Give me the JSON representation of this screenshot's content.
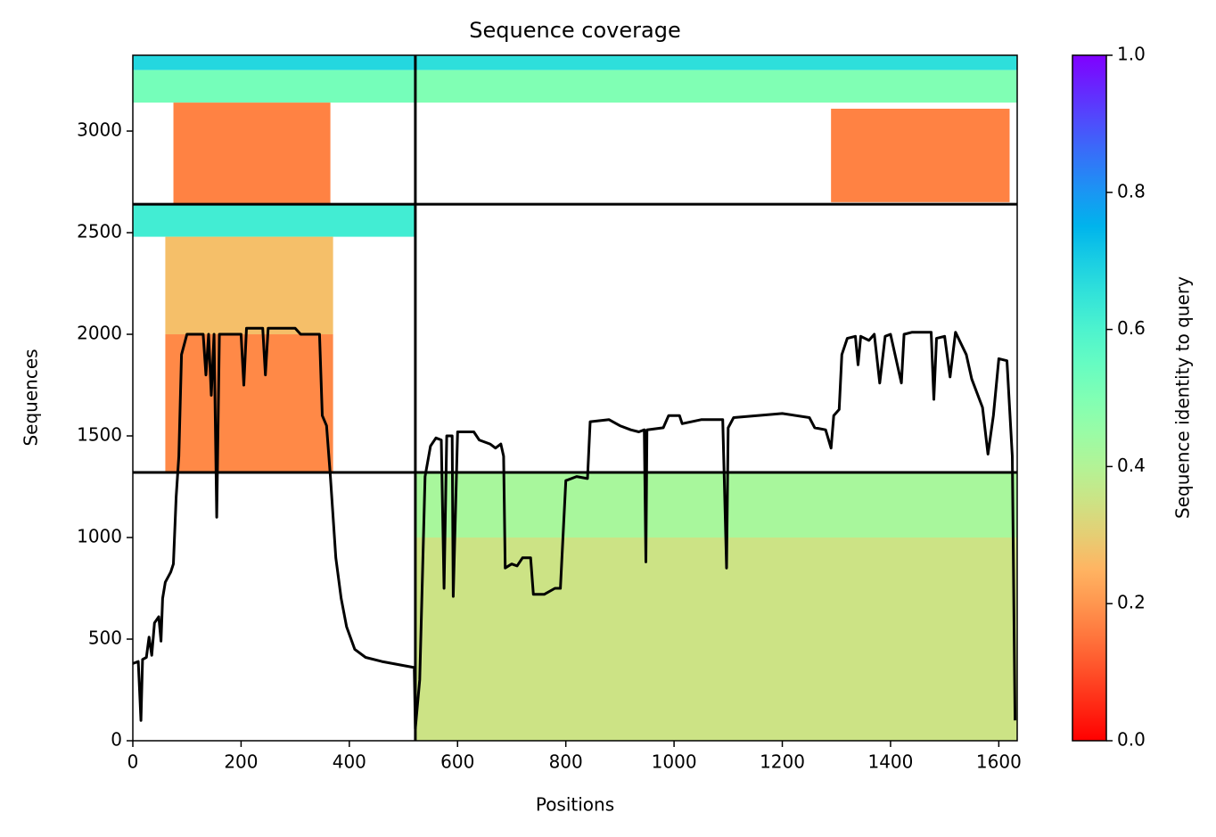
{
  "chart_data": {
    "type": "coverage",
    "title": "Sequence coverage",
    "xlabel": "Positions",
    "ylabel": "Sequences",
    "xlim": [
      0,
      1634
    ],
    "ylim": [
      0,
      3373
    ],
    "xticks": [
      0,
      200,
      400,
      600,
      800,
      1000,
      1200,
      1400,
      1600
    ],
    "yticks": [
      0,
      500,
      1000,
      1500,
      2000,
      2500,
      3000
    ],
    "colormap": "rainbow_r",
    "colorbar": {
      "label": "Sequence identity to query",
      "lim": [
        0,
        1
      ],
      "ticks": [
        {
          "value": 0,
          "label": "0.0"
        },
        0.2,
        0.4,
        0.6,
        0.8,
        {
          "value": 1,
          "label": "1.0"
        }
      ]
    },
    "blocks": [
      {
        "x": [
          0,
          522
        ],
        "y": [
          3300,
          3373
        ],
        "identity": 0.68
      },
      {
        "x": [
          0,
          522
        ],
        "y": [
          3140,
          3300
        ],
        "identity": 0.52
      },
      {
        "x": [
          75,
          365
        ],
        "y": [
          2640,
          3140
        ],
        "identity": 0.17
      },
      {
        "x": [
          522,
          1634
        ],
        "y": [
          3300,
          3373
        ],
        "identity": 0.66
      },
      {
        "x": [
          522,
          1634
        ],
        "y": [
          3140,
          3300
        ],
        "identity": 0.5
      },
      {
        "x": [
          1290,
          1620
        ],
        "y": [
          2650,
          3110
        ],
        "identity": 0.17
      },
      {
        "x": [
          0,
          522
        ],
        "y": [
          2480,
          2640
        ],
        "identity": 0.62
      },
      {
        "x": [
          60,
          370
        ],
        "y": [
          2000,
          2480
        ],
        "identity": 0.27
      },
      {
        "x": [
          60,
          370
        ],
        "y": [
          1320,
          2000
        ],
        "identity": 0.18
      },
      {
        "x": [
          522,
          1634
        ],
        "y": [
          1000,
          1320
        ],
        "identity": 0.42
      },
      {
        "x": [
          522,
          1634
        ],
        "y": [
          0,
          1000
        ],
        "identity": 0.35
      }
    ],
    "dividers": {
      "x": [
        522
      ],
      "y": [
        1320,
        2640
      ]
    },
    "coverage": {
      "color": "#000000",
      "x": [
        0,
        10,
        15,
        18,
        25,
        30,
        35,
        40,
        48,
        52,
        55,
        60,
        70,
        75,
        80,
        85,
        90,
        100,
        130,
        135,
        140,
        145,
        150,
        155,
        160,
        200,
        205,
        210,
        240,
        245,
        250,
        300,
        310,
        345,
        350,
        358,
        365,
        375,
        385,
        395,
        410,
        430,
        460,
        500,
        520,
        522,
        530,
        540,
        550,
        560,
        570,
        575,
        580,
        590,
        592,
        600,
        630,
        640,
        660,
        670,
        680,
        685,
        688,
        700,
        710,
        720,
        735,
        740,
        760,
        780,
        790,
        800,
        820,
        840,
        845,
        880,
        900,
        920,
        935,
        945,
        948,
        950,
        980,
        990,
        1010,
        1015,
        1050,
        1090,
        1097,
        1100,
        1110,
        1200,
        1250,
        1260,
        1280,
        1290,
        1295,
        1305,
        1310,
        1320,
        1335,
        1340,
        1345,
        1360,
        1370,
        1380,
        1390,
        1400,
        1420,
        1425,
        1440,
        1475,
        1480,
        1485,
        1500,
        1510,
        1520,
        1540,
        1550,
        1570,
        1580,
        1590,
        1600,
        1615,
        1625,
        1630
      ],
      "y": [
        380,
        390,
        100,
        400,
        410,
        510,
        420,
        580,
        610,
        490,
        700,
        780,
        830,
        870,
        1200,
        1400,
        1900,
        2000,
        2000,
        1800,
        2000,
        1700,
        2000,
        1100,
        2000,
        2000,
        1750,
        2030,
        2030,
        1800,
        2030,
        2030,
        2000,
        2000,
        1600,
        1550,
        1300,
        900,
        700,
        560,
        450,
        410,
        390,
        370,
        360,
        60,
        300,
        1300,
        1450,
        1490,
        1480,
        750,
        1500,
        1500,
        710,
        1520,
        1520,
        1480,
        1460,
        1440,
        1460,
        1400,
        850,
        870,
        860,
        900,
        900,
        720,
        720,
        750,
        750,
        1280,
        1300,
        1290,
        1570,
        1580,
        1550,
        1530,
        1520,
        1530,
        880,
        1530,
        1540,
        1600,
        1600,
        1560,
        1580,
        1580,
        850,
        1540,
        1590,
        1610,
        1590,
        1540,
        1530,
        1440,
        1600,
        1630,
        1900,
        1980,
        1990,
        1850,
        1990,
        1970,
        2000,
        1760,
        1990,
        2000,
        1760,
        2000,
        2010,
        2010,
        1680,
        1980,
        1990,
        1790,
        2010,
        1900,
        1780,
        1640,
        1410,
        1600,
        1880,
        1870,
        1400,
        100
      ]
    }
  }
}
